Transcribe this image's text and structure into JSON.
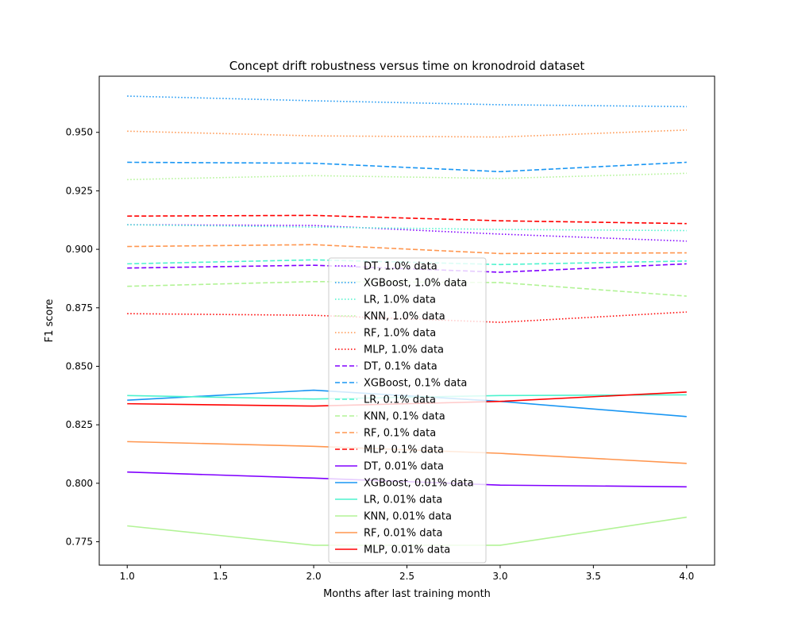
{
  "chart_data": {
    "type": "line",
    "title": "Concept drift robustness versus time on kronodroid dataset",
    "xlabel": "Months after last training month",
    "ylabel": "F1 score",
    "x": [
      1.0,
      2.0,
      3.0,
      4.0
    ],
    "xlim": [
      0.85,
      4.15
    ],
    "ylim": [
      0.765,
      0.974
    ],
    "xticks": [
      "1.0",
      "1.5",
      "2.0",
      "2.5",
      "3.0",
      "3.5",
      "4.0"
    ],
    "yticks": [
      "0.775",
      "0.800",
      "0.825",
      "0.850",
      "0.875",
      "0.900",
      "0.925",
      "0.950"
    ],
    "grid": false,
    "legend_position": "center-bottom",
    "series": [
      {
        "name": "DT, 1.0% data",
        "color": "#8000ff",
        "style": "dotted",
        "values": [
          0.9105,
          0.9102,
          0.9065,
          0.9035
        ]
      },
      {
        "name": "XGBoost, 1.0% data",
        "color": "#1996f3",
        "style": "dotted",
        "values": [
          0.9655,
          0.9635,
          0.9618,
          0.961
        ]
      },
      {
        "name": "LR, 1.0% data",
        "color": "#4df3ce",
        "style": "dotted",
        "values": [
          0.9105,
          0.9095,
          0.9085,
          0.908
        ]
      },
      {
        "name": "KNN, 1.0% data",
        "color": "#b2f396",
        "style": "dotted",
        "values": [
          0.9298,
          0.9315,
          0.9303,
          0.9325
        ]
      },
      {
        "name": "RF, 1.0% data",
        "color": "#ff964f",
        "style": "dotted",
        "values": [
          0.9505,
          0.9485,
          0.948,
          0.951
        ]
      },
      {
        "name": "MLP, 1.0% data",
        "color": "#ff0000",
        "style": "dotted",
        "values": [
          0.8725,
          0.8718,
          0.8688,
          0.8732
        ]
      },
      {
        "name": "DT, 0.1% data",
        "color": "#8000ff",
        "style": "dashed",
        "values": [
          0.892,
          0.8932,
          0.8902,
          0.8938
        ]
      },
      {
        "name": "XGBoost, 0.1% data",
        "color": "#1996f3",
        "style": "dashed",
        "values": [
          0.9372,
          0.9368,
          0.9332,
          0.9372
        ]
      },
      {
        "name": "LR, 0.1% data",
        "color": "#4df3ce",
        "style": "dashed",
        "values": [
          0.8938,
          0.8955,
          0.8935,
          0.895
        ]
      },
      {
        "name": "KNN, 0.1% data",
        "color": "#b2f396",
        "style": "dashed",
        "values": [
          0.8842,
          0.8862,
          0.8858,
          0.88
        ]
      },
      {
        "name": "RF, 0.1% data",
        "color": "#ff964f",
        "style": "dashed",
        "values": [
          0.9012,
          0.902,
          0.8982,
          0.8985
        ]
      },
      {
        "name": "MLP, 0.1% data",
        "color": "#ff0000",
        "style": "dashed",
        "values": [
          0.9142,
          0.9145,
          0.9122,
          0.911
        ]
      },
      {
        "name": "DT, 0.01% data",
        "color": "#8000ff",
        "style": "solid",
        "values": [
          0.8048,
          0.8022,
          0.7992,
          0.7985
        ]
      },
      {
        "name": "XGBoost, 0.01% data",
        "color": "#1996f3",
        "style": "solid",
        "values": [
          0.8355,
          0.8398,
          0.835,
          0.8285
        ]
      },
      {
        "name": "LR, 0.01% data",
        "color": "#4df3ce",
        "style": "solid",
        "values": [
          0.8375,
          0.836,
          0.8375,
          0.8378
        ]
      },
      {
        "name": "KNN, 0.01% data",
        "color": "#b2f396",
        "style": "solid",
        "values": [
          0.7818,
          0.7735,
          0.7735,
          0.7855
        ]
      },
      {
        "name": "RF, 0.01% data",
        "color": "#ff964f",
        "style": "solid",
        "values": [
          0.8178,
          0.8158,
          0.8128,
          0.8085
        ]
      },
      {
        "name": "MLP, 0.01% data",
        "color": "#ff0000",
        "style": "solid",
        "values": [
          0.834,
          0.833,
          0.835,
          0.839
        ]
      }
    ]
  }
}
